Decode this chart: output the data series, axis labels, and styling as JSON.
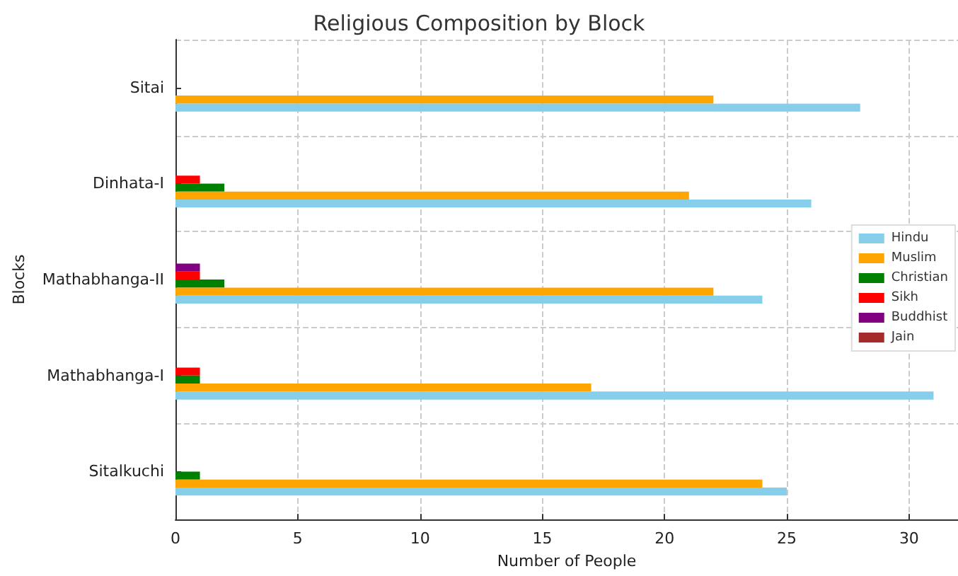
{
  "chart_data": {
    "type": "bar",
    "orientation": "horizontal",
    "title": "Religious Composition by Block",
    "xlabel": "Number of People",
    "ylabel": "Blocks",
    "categories": [
      "Sitai",
      "Dinhata-I",
      "Mathabhanga-II",
      "Mathabhanga-I",
      "Sitalkuchi"
    ],
    "series": [
      {
        "name": "Hindu",
        "color": "#87ceeb",
        "values": [
          28,
          26,
          24,
          31,
          25
        ]
      },
      {
        "name": "Muslim",
        "color": "#ffa500",
        "values": [
          22,
          21,
          22,
          17,
          24
        ]
      },
      {
        "name": "Christian",
        "color": "#008000",
        "values": [
          0,
          2,
          2,
          1,
          1
        ]
      },
      {
        "name": "Sikh",
        "color": "#ff0000",
        "values": [
          0,
          1,
          1,
          1,
          0
        ]
      },
      {
        "name": "Buddhist",
        "color": "#800080",
        "values": [
          0,
          0,
          1,
          0,
          0
        ]
      },
      {
        "name": "Jain",
        "color": "#a52a2a",
        "values": [
          0,
          0,
          0,
          0,
          0
        ]
      }
    ],
    "xlim": [
      0,
      32
    ],
    "xticks": [
      0,
      5,
      10,
      15,
      20,
      25,
      30
    ],
    "grid": true,
    "legend": "right"
  }
}
